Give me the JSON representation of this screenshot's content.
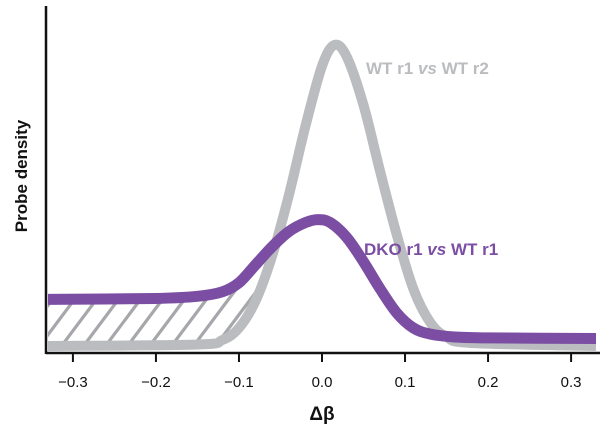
{
  "chart_data": {
    "type": "line",
    "xlabel": "Δβ",
    "ylabel": "Probe density",
    "xlim": [
      -0.33,
      0.33
    ],
    "ylim": [
      0,
      1
    ],
    "x_ticks": [
      -0.3,
      -0.2,
      -0.1,
      0.0,
      0.1,
      0.2,
      0.3
    ],
    "x_tick_labels": [
      "−0.3",
      "−0.2",
      "−0.1",
      "0.0",
      "0.1",
      "0.2",
      "0.3"
    ],
    "grid": false,
    "legend": "inline labels",
    "colors": {
      "wt": "#babcbf",
      "dko": "#7b4ea3",
      "hatch": "#a5a7ab",
      "axis": "#111111"
    },
    "series": [
      {
        "key": "wt",
        "label_parts": [
          {
            "text": "WT r1 ",
            "italic": false
          },
          {
            "text": "vs",
            "italic": true
          },
          {
            "text": " WT r2",
            "italic": false
          }
        ],
        "x": [
          -0.33,
          -0.15,
          -0.12,
          -0.1,
          -0.08,
          -0.06,
          -0.04,
          -0.02,
          0.0,
          0.015,
          0.03,
          0.05,
          0.07,
          0.09,
          0.11,
          0.13,
          0.15,
          0.18,
          0.33
        ],
        "y": [
          0.0,
          0.005,
          0.02,
          0.06,
          0.15,
          0.3,
          0.5,
          0.73,
          0.93,
          1.0,
          0.96,
          0.8,
          0.58,
          0.37,
          0.19,
          0.08,
          0.03,
          0.01,
          0.0
        ]
      },
      {
        "key": "dko",
        "label_parts": [
          {
            "text": "DKO r1 ",
            "italic": false
          },
          {
            "text": "vs",
            "italic": true
          },
          {
            "text": " WT r1",
            "italic": false
          }
        ],
        "x": [
          -0.33,
          -0.2,
          -0.15,
          -0.12,
          -0.1,
          -0.08,
          -0.06,
          -0.04,
          -0.02,
          -0.005,
          0.01,
          0.03,
          0.05,
          0.07,
          0.09,
          0.11,
          0.13,
          0.16,
          0.2,
          0.33
        ],
        "y": [
          0.155,
          0.158,
          0.165,
          0.18,
          0.21,
          0.27,
          0.33,
          0.38,
          0.41,
          0.42,
          0.41,
          0.36,
          0.28,
          0.19,
          0.11,
          0.06,
          0.04,
          0.03,
          0.027,
          0.025
        ]
      }
    ],
    "annotations": [
      {
        "type": "hatched-region",
        "between": [
          "dko",
          "wt"
        ],
        "x_range": [
          -0.33,
          -0.08
        ]
      }
    ]
  }
}
